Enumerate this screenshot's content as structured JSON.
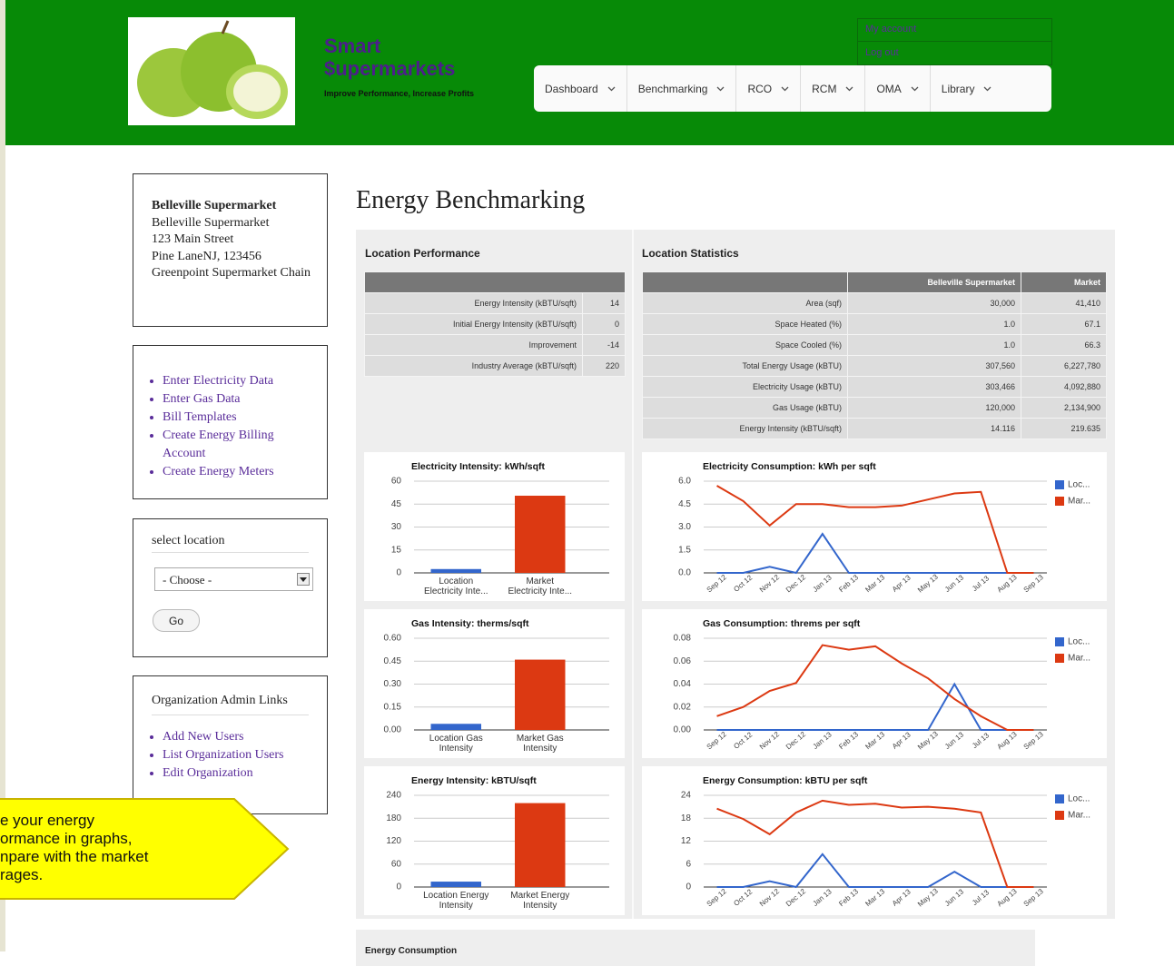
{
  "header": {
    "site_name": [
      "Smart",
      "$upermarkets"
    ],
    "slogan": "Improve Performance, Increase Profits",
    "user_links": [
      "My account",
      "Log out"
    ],
    "nav": [
      "Dashboard",
      "Benchmarking",
      "RCO",
      "RCM",
      "OMA",
      "Library"
    ]
  },
  "sidebar": {
    "location": {
      "name": "Belleville Supermarket",
      "lines": [
        "Belleville Supermarket",
        "123 Main Street",
        "Pine LaneNJ,  123456",
        "Greenpoint Supermarket Chain"
      ]
    },
    "links": [
      "Enter Electricity Data",
      "Enter Gas Data",
      "Bill Templates",
      "Create Energy Billing Account",
      "Create Energy Meters"
    ],
    "select": {
      "title": "select location",
      "option": "- Choose -",
      "button": "Go"
    },
    "admin": {
      "title": "Organization Admin Links",
      "links": [
        "Add New Users",
        "List Organization Users",
        "Edit Organization"
      ]
    }
  },
  "callout": [
    "e your energy",
    "ormance in graphs,",
    "npare with the market",
    "rages."
  ],
  "page_title": "Energy Benchmarking",
  "performance": {
    "title": "Location Performance",
    "rows": [
      [
        "Energy Intensity (kBTU/sqft)",
        "14"
      ],
      [
        "Initial Energy Intensity (kBTU/sqft)",
        "0"
      ],
      [
        "Improvement",
        "-14"
      ],
      [
        "Industry Average (kBTU/sqft)",
        "220"
      ]
    ]
  },
  "statistics": {
    "title": "Location Statistics",
    "columns": [
      "Belleville Supermarket",
      "Market"
    ],
    "rows": [
      [
        "Area (sqf)",
        "30,000",
        "41,410"
      ],
      [
        "Space Heated (%)",
        "1.0",
        "67.1"
      ],
      [
        "Space Cooled (%)",
        "1.0",
        "66.3"
      ],
      [
        "Total Energy Usage (kBTU)",
        "307,560",
        "6,227,780"
      ],
      [
        "Electricity Usage (kBTU)",
        "303,466",
        "4,092,880"
      ],
      [
        "Gas Usage (kBTU)",
        "120,000",
        "2,134,900"
      ],
      [
        "Energy Intensity (kBTU/sqft)",
        "14.116",
        "219.635"
      ]
    ]
  },
  "charts": [
    {
      "type": "bar",
      "title": "Electricity Intensity: kWh/sqft",
      "categories": [
        "Location Electricity Inte...",
        "Market Electricity Inte..."
      ],
      "values": [
        2.5,
        50.5
      ],
      "colors": [
        "#3366cc",
        "#dc3912"
      ],
      "ylim": [
        0,
        60
      ],
      "yticks": [
        0,
        15,
        30,
        45,
        60
      ]
    },
    {
      "type": "line",
      "title": "Electricity Consumption: kWh per sqft",
      "x": [
        "Sep 12",
        "Oct 12",
        "Nov 12",
        "Dec 12",
        "Jan 13",
        "Feb 13",
        "Mar 13",
        "Apr 13",
        "May 13",
        "Jun 13",
        "Jul 13",
        "Aug 13",
        "Sep 13"
      ],
      "series": [
        {
          "name": "Loc...",
          "color": "#3366cc",
          "values": [
            0,
            0,
            0.4,
            0,
            2.55,
            0,
            0,
            0,
            0,
            0,
            0,
            0,
            0
          ]
        },
        {
          "name": "Mar...",
          "color": "#dc3912",
          "values": [
            5.7,
            4.7,
            3.1,
            4.5,
            4.5,
            4.3,
            4.3,
            4.4,
            4.8,
            5.2,
            5.3,
            0,
            0
          ]
        }
      ],
      "ylim": [
        0,
        6
      ],
      "yticks": [
        {
          "value": 0,
          "label": "0.0"
        },
        {
          "value": 1.5,
          "label": "1.5"
        },
        {
          "value": 3,
          "label": "3.0"
        },
        {
          "value": 4.5,
          "label": "4.5"
        },
        {
          "value": 6,
          "label": "6.0"
        }
      ],
      "legend": "right"
    },
    {
      "type": "bar",
      "title": "Gas Intensity: therms/sqft",
      "categories": [
        "Location Gas Intensity",
        "Market Gas Intensity"
      ],
      "values": [
        0.04,
        0.46
      ],
      "colors": [
        "#3366cc",
        "#dc3912"
      ],
      "ylim": [
        0,
        0.6
      ],
      "yticks": [
        {
          "value": 0,
          "label": "0.00"
        },
        {
          "value": 0.15,
          "label": "0.15"
        },
        {
          "value": 0.3,
          "label": "0.30"
        },
        {
          "value": 0.45,
          "label": "0.45"
        },
        {
          "value": 0.6,
          "label": "0.60"
        }
      ]
    },
    {
      "type": "line",
      "title": "Gas Consumption: threms per sqft",
      "x": [
        "Sep 12",
        "Oct 12",
        "Nov 12",
        "Dec 12",
        "Jan 13",
        "Feb 13",
        "Mar 13",
        "Apr 13",
        "May 13",
        "Jun 13",
        "Jul 13",
        "Aug 13",
        "Sep 13"
      ],
      "series": [
        {
          "name": "Loc...",
          "color": "#3366cc",
          "values": [
            0,
            0,
            0,
            0,
            0,
            0,
            0,
            0,
            0,
            0.04,
            0,
            0,
            0
          ]
        },
        {
          "name": "Mar...",
          "color": "#dc3912",
          "values": [
            0.012,
            0.02,
            0.034,
            0.041,
            0.074,
            0.07,
            0.073,
            0.058,
            0.045,
            0.027,
            0.012,
            0,
            0
          ]
        }
      ],
      "ylim": [
        0,
        0.08
      ],
      "yticks": [
        {
          "value": 0,
          "label": "0.00"
        },
        {
          "value": 0.02,
          "label": "0.02"
        },
        {
          "value": 0.04,
          "label": "0.04"
        },
        {
          "value": 0.06,
          "label": "0.06"
        },
        {
          "value": 0.08,
          "label": "0.08"
        }
      ],
      "legend": "right"
    },
    {
      "type": "bar",
      "title": "Energy Intensity: kBTU/sqft",
      "categories": [
        "Location Energy Intensity",
        "Market Energy Intensity"
      ],
      "values": [
        14.116,
        219.635
      ],
      "colors": [
        "#3366cc",
        "#dc3912"
      ],
      "ylim": [
        0,
        240
      ],
      "yticks": [
        0,
        60,
        120,
        180,
        240
      ]
    },
    {
      "type": "line",
      "title": "Energy Consumption: kBTU per sqft",
      "x": [
        "Sep 12",
        "Oct 12",
        "Nov 12",
        "Dec 12",
        "Jan 13",
        "Feb 13",
        "Mar 13",
        "Apr 13",
        "May 13",
        "Jun 13",
        "Jul 13",
        "Aug 13",
        "Sep 13"
      ],
      "series": [
        {
          "name": "Loc...",
          "color": "#3366cc",
          "values": [
            0,
            0,
            1.5,
            0,
            8.6,
            0,
            0,
            0,
            0,
            4,
            0,
            0,
            0
          ]
        },
        {
          "name": "Mar...",
          "color": "#dc3912",
          "values": [
            20.5,
            17.8,
            13.8,
            19.5,
            22.6,
            21.5,
            21.8,
            20.8,
            21,
            20.5,
            19.5,
            0,
            0
          ]
        }
      ],
      "ylim": [
        0,
        24
      ],
      "yticks": [
        0,
        6,
        12,
        18,
        24
      ],
      "legend": "right"
    }
  ],
  "bottom_section": "Energy Consumption"
}
